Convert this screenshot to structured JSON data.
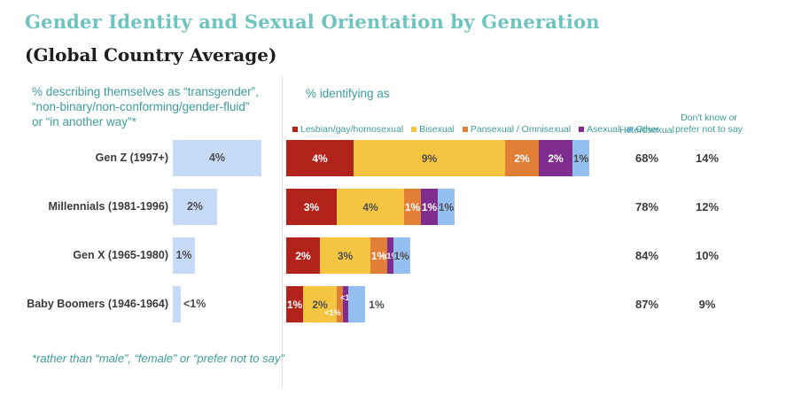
{
  "title": "Gender Identity and Sexual Orientation by Generation",
  "subtitle": "(Global Country Average)",
  "colors": {
    "teal_title": "#6EC4BF",
    "teal_text": "#3E9C9B",
    "trans_bar": "#C6DAF8",
    "lesbian": "#B2231C",
    "bisexual": "#F5C542",
    "pansexual": "#E07F35",
    "asexual": "#7F2D8E",
    "other": "#94BFF1",
    "label_dark": "#4D4D4D",
    "label_light": "#FFFFFF"
  },
  "left_panel": {
    "header_lines": [
      "% describing themselves as “transgender”,",
      "“non-binary/non-conforming/gender-fluid”",
      "or “in another way”*"
    ],
    "footnote": "*rather than “male”, “female” or “prefer not to say”"
  },
  "right_panel": {
    "header": "% identifying as",
    "legend": [
      {
        "label": "Lesbian/gay/homosexual",
        "color_key": "lesbian"
      },
      {
        "label": "Bisexual",
        "color_key": "bisexual"
      },
      {
        "label": "Pansexual / Omnisexual",
        "color_key": "pansexual"
      },
      {
        "label": "Asexual",
        "color_key": "asexual"
      },
      {
        "label": "Other",
        "color_key": "other"
      }
    ],
    "columns": {
      "heterosexual": "Heterosexual",
      "dontknow": "Don't know or prefer not to say"
    }
  },
  "chart_data": {
    "type": "bar",
    "orientation": "horizontal",
    "stacked": true,
    "unit": "%",
    "title": "Gender Identity and Sexual Orientation by Generation (Global Country Average)",
    "categories": [
      "Gen Z (1997+)",
      "Millennials (1981-1996)",
      "Gen X (1965-1980)",
      "Baby Boomers (1946-1964)"
    ],
    "series_legend": [
      "Lesbian/gay/homosexual",
      "Bisexual",
      "Pansexual / Omnisexual",
      "Asexual",
      "Other"
    ],
    "transgender_values": [
      "4%",
      "2%",
      "1%",
      "<1%"
    ],
    "heterosexual_values": [
      "68%",
      "78%",
      "84%",
      "87%"
    ],
    "dontknow_values": [
      "14%",
      "12%",
      "10%",
      "9%"
    ],
    "rows": [
      {
        "label": "Gen Z (1997+)",
        "trans": {
          "value": 4,
          "label": "4%",
          "inside": true
        },
        "segments": [
          {
            "key": "lesbian",
            "value": 4,
            "label": "4%",
            "text": "light"
          },
          {
            "key": "bisexual",
            "value": 9,
            "label": "9%",
            "text": "dark"
          },
          {
            "key": "pansexual",
            "value": 2,
            "label": "2%",
            "text": "light"
          },
          {
            "key": "asexual",
            "value": 2,
            "label": "2%",
            "text": "light"
          },
          {
            "key": "other",
            "value": 1,
            "label": "1%",
            "text": "dark"
          }
        ],
        "heterosexual": "68%",
        "dontknow": "14%"
      },
      {
        "label": "Millennials (1981-1996)",
        "trans": {
          "value": 2,
          "label": "2%",
          "inside": true
        },
        "segments": [
          {
            "key": "lesbian",
            "value": 3,
            "label": "3%",
            "text": "light"
          },
          {
            "key": "bisexual",
            "value": 4,
            "label": "4%",
            "text": "dark"
          },
          {
            "key": "pansexual",
            "value": 1,
            "label": "1%",
            "text": "light"
          },
          {
            "key": "asexual",
            "value": 1,
            "label": "1%",
            "text": "light"
          },
          {
            "key": "other",
            "value": 1,
            "label": "1%",
            "text": "dark"
          }
        ],
        "heterosexual": "78%",
        "dontknow": "12%"
      },
      {
        "label": "Gen X (1965-1980)",
        "trans": {
          "value": 1,
          "label": "1%",
          "inside": true
        },
        "segments": [
          {
            "key": "lesbian",
            "value": 2,
            "label": "2%",
            "text": "light"
          },
          {
            "key": "bisexual",
            "value": 3,
            "label": "3%",
            "text": "dark"
          },
          {
            "key": "pansexual",
            "value": 1,
            "label": "1%",
            "text": "light"
          },
          {
            "key": "asexual",
            "value": 0.35,
            "label": "<1%",
            "text": "light",
            "small": true
          },
          {
            "key": "other",
            "value": 1,
            "label": "1%",
            "text": "dark"
          }
        ],
        "heterosexual": "84%",
        "dontknow": "10%"
      },
      {
        "label": "Baby Boomers (1946-1964)",
        "trans": {
          "value": 0.35,
          "label": "<1%",
          "inside": false
        },
        "segments": [
          {
            "key": "lesbian",
            "value": 1,
            "label": "1%",
            "text": "light"
          },
          {
            "key": "bisexual",
            "value": 2,
            "label": "2%",
            "text": "dark"
          },
          {
            "key": "pansexual",
            "value": 0.35,
            "label": "<1%",
            "text": "light",
            "small": true,
            "shift": "down"
          },
          {
            "key": "asexual",
            "value": 0.35,
            "label": "<1%",
            "text": "light",
            "small": true,
            "shift": "up"
          },
          {
            "key": "other",
            "value": 1,
            "label": "1%",
            "text": "dark",
            "shift": "out"
          }
        ],
        "heterosexual": "87%",
        "dontknow": "9%"
      }
    ]
  }
}
